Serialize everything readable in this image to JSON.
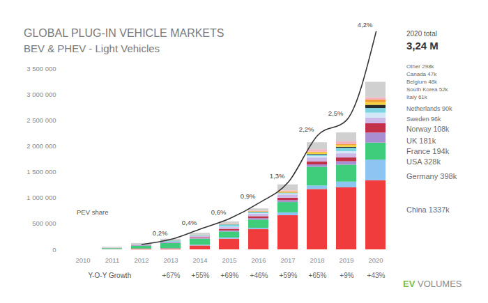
{
  "chart_data": {
    "type": "bar",
    "title": "GLOBAL PLUG-IN VEHICLE MARKETS",
    "subtitle": "BEV & PHEV - Light Vehicles",
    "stacked": true,
    "categories": [
      "2010",
      "2011",
      "2012",
      "2013",
      "2014",
      "2015",
      "2016",
      "2017",
      "2018",
      "2019",
      "2020"
    ],
    "ylim": [
      0,
      3500000
    ],
    "yticks": [
      0,
      {
        "value": 500000,
        "label": "500 000"
      },
      {
        "value": 1000000,
        "label": "1 000 000"
      },
      {
        "value": 1500000,
        "label": "1 500 000"
      },
      {
        "value": 2000000,
        "label": "2 000 000"
      },
      {
        "value": 2500000,
        "label": "2 500 000"
      },
      {
        "value": 3000000,
        "label": "3 000 000"
      },
      {
        "value": 3500000,
        "label": "3 500 000"
      }
    ],
    "y2lim": [
      0,
      4.4
    ],
    "series": [
      {
        "name": "China",
        "legend_label": "China 1337k",
        "color": "#f03c3c",
        "values": [
          0,
          5000,
          13000,
          18000,
          75000,
          207000,
          390000,
          660000,
          1167000,
          1200000,
          1337000
        ]
      },
      {
        "name": "Germany",
        "legend_label": "Germany 398k",
        "color": "#8cc4f2",
        "values": [
          0,
          2000,
          5000,
          7000,
          13000,
          24000,
          25000,
          55000,
          68000,
          109000,
          398000
        ]
      },
      {
        "name": "USA",
        "legend_label": "USA 328k",
        "color": "#3fcd7c",
        "values": [
          0,
          17000,
          53000,
          97000,
          119000,
          114000,
          160000,
          199000,
          361000,
          327000,
          328000
        ]
      },
      {
        "name": "France",
        "legend_label": "France 194k",
        "color": "#a98fd2",
        "values": [
          0,
          3000,
          9000,
          13000,
          15000,
          22000,
          29000,
          37000,
          46000,
          67000,
          194000
        ]
      },
      {
        "name": "UK",
        "legend_label": "UK 181k",
        "color": "#c2304a",
        "values": [
          0,
          1000,
          2000,
          3000,
          15000,
          28000,
          37000,
          47000,
          60000,
          73000,
          181000
        ]
      },
      {
        "name": "Norway",
        "legend_label": "Norway 108k",
        "color": "#cbb9e8",
        "values": [
          0,
          2000,
          4000,
          9000,
          20000,
          34000,
          45000,
          62000,
          73000,
          80000,
          108000
        ]
      },
      {
        "name": "Sweden",
        "legend_label": "Sweden 96k",
        "color": "#d2e7f8",
        "values": [
          0,
          0,
          1000,
          2000,
          4000,
          9000,
          13000,
          20000,
          30000,
          41000,
          96000
        ]
      },
      {
        "name": "Netherlands",
        "legend_label": "Netherlands 90k",
        "color": "#7fd4e2",
        "values": [
          0,
          1000,
          5000,
          23000,
          15000,
          44000,
          24000,
          11000,
          28000,
          67000,
          90000
        ]
      },
      {
        "name": "Italy",
        "legend_label": "Italy 61k",
        "color": "#2a2a2a",
        "values": [
          0,
          0,
          1000,
          1000,
          2000,
          2000,
          3000,
          5000,
          10000,
          17000,
          61000
        ]
      },
      {
        "name": "South Korea",
        "legend_label": "South Korea 52k",
        "color": "#f3d13c",
        "values": [
          0,
          0,
          0,
          1000,
          1000,
          3000,
          5000,
          14000,
          33000,
          35000,
          52000
        ]
      },
      {
        "name": "Belgium",
        "legend_label": "Belgium 48k",
        "color": "#f19b2c",
        "values": [
          0,
          0,
          1000,
          1000,
          2000,
          5000,
          8000,
          14000,
          14000,
          16000,
          48000
        ]
      },
      {
        "name": "Canada",
        "legend_label": "Canada 47k",
        "color": "#f5b4c2",
        "values": [
          0,
          1000,
          2000,
          3000,
          5000,
          7000,
          11000,
          16000,
          44000,
          55000,
          47000
        ]
      },
      {
        "name": "Other",
        "legend_label": "Other 298k",
        "color": "#d0d0d0",
        "values": [
          0,
          18000,
          27000,
          29000,
          34000,
          42000,
          40000,
          116000,
          136000,
          173000,
          298000
        ]
      },
      {
        "name": "PEV share",
        "type": "line",
        "axis": "y2",
        "color": "#333333",
        "data_labels": true,
        "values": [
          null,
          null,
          0.1,
          0.2,
          0.4,
          0.6,
          0.9,
          1.3,
          2.2,
          2.5,
          4.2
        ],
        "value_labels": [
          null,
          null,
          null,
          "0,2%",
          "0,4%",
          "0,6%",
          "0,9%",
          "1,3%",
          "2,2%",
          "2,5%",
          "4,2%"
        ]
      }
    ],
    "total": {
      "title": "2020 total",
      "label": "3,24 M"
    },
    "growth": {
      "title": "Y-O-Y Growth",
      "values": [
        null,
        null,
        null,
        67,
        55,
        69,
        46,
        59,
        65,
        9,
        43
      ],
      "value_labels": [
        null,
        null,
        null,
        "+67%",
        "+55%",
        "+69%",
        "+46%",
        "+59%",
        "+65%",
        "+9%",
        "+43%"
      ]
    },
    "source": "EV VOLUMES"
  }
}
